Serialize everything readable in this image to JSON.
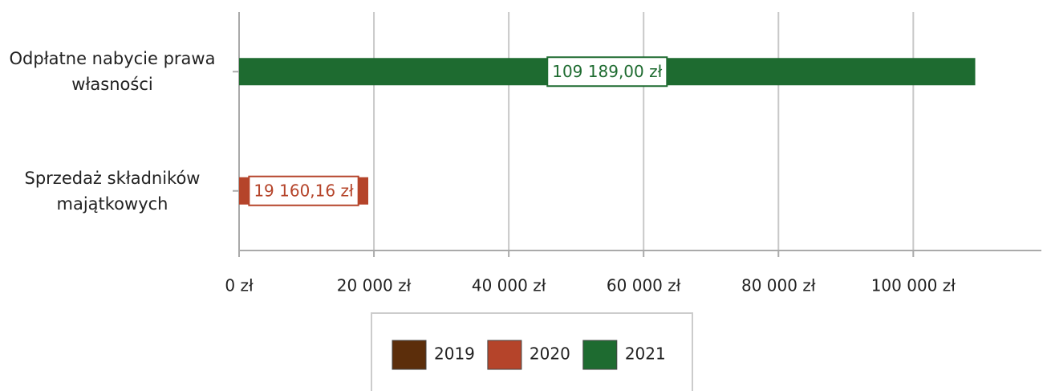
{
  "chart_data": {
    "type": "bar",
    "orientation": "horizontal",
    "categories": [
      "Odpłatne nabycie prawa własności",
      "Sprzedaż składników majątkowych"
    ],
    "series": [
      {
        "name": "2019",
        "color": "#5c2e0b",
        "values": [
          null,
          null
        ]
      },
      {
        "name": "2020",
        "color": "#b5442a",
        "values": [
          null,
          19160.16
        ],
        "value_labels": [
          null,
          "19 160,16 zł"
        ]
      },
      {
        "name": "2021",
        "color": "#1e6b30",
        "values": [
          109189.0,
          null
        ],
        "value_labels": [
          "109 189,00 zł",
          null
        ]
      }
    ],
    "xlim": [
      0,
      119000
    ],
    "xticks": [
      {
        "value": 0,
        "label": "0 zł"
      },
      {
        "value": 20000,
        "label": "20 000 zł"
      },
      {
        "value": 40000,
        "label": "40 000 zł"
      },
      {
        "value": 60000,
        "label": "60 000 zł"
      },
      {
        "value": 80000,
        "label": "80 000 zł"
      },
      {
        "value": 100000,
        "label": "100 000 zł"
      }
    ],
    "grid": true,
    "legend": "bottom"
  }
}
